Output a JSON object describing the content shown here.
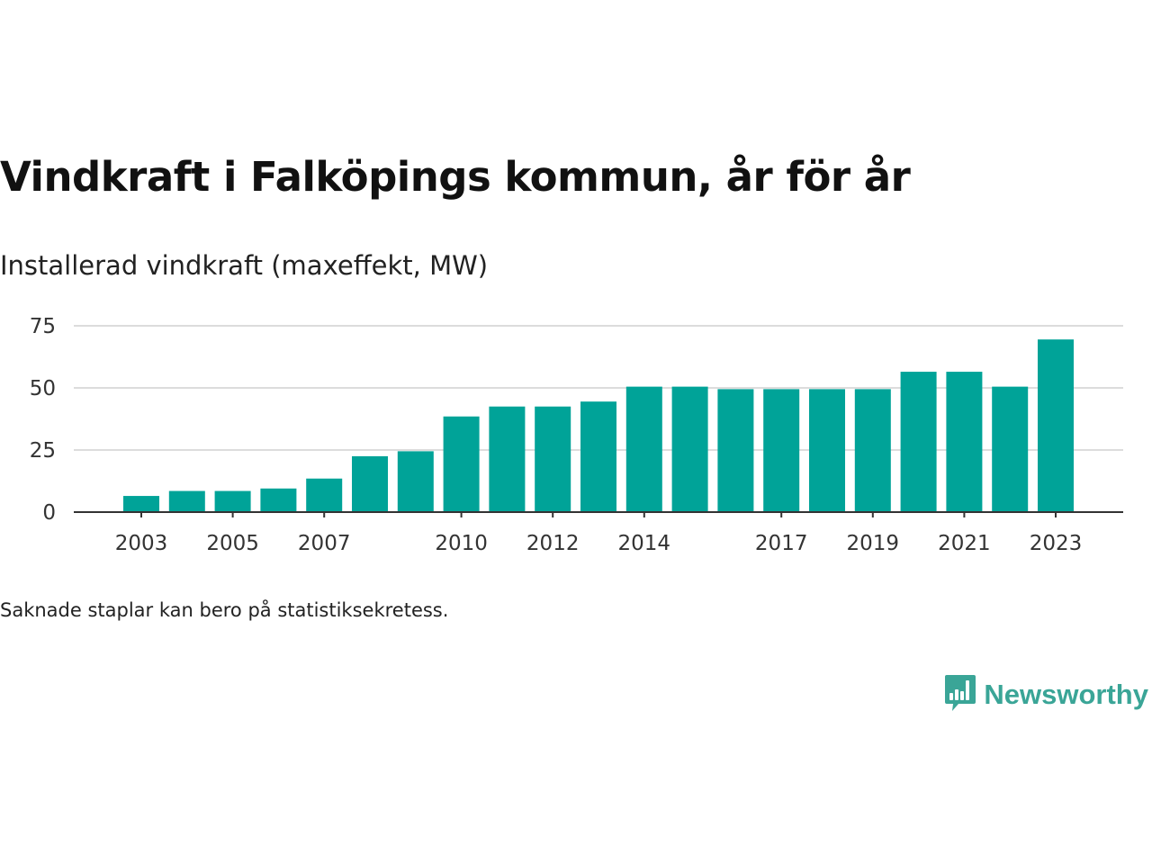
{
  "header": {
    "title": "Vindkraft i Falköpings kommun, år för år",
    "subtitle": "Installerad vindkraft (maxeffekt, MW)"
  },
  "footer": {
    "note": "Saknade staplar kan bero på statistiksekretess."
  },
  "brand": {
    "name": "Newsworthy",
    "icon": "bar-chart-speech-bubble-icon",
    "color": "#3aa597"
  },
  "chart_data": {
    "type": "bar",
    "categories": [
      "2003",
      "2004",
      "2005",
      "2006",
      "2007",
      "2008",
      "2009",
      "2010",
      "2011",
      "2012",
      "2013",
      "2014",
      "2015",
      "2016",
      "2017",
      "2018",
      "2019",
      "2020",
      "2021",
      "2022",
      "2023"
    ],
    "values": [
      6.5,
      8.5,
      8.5,
      9.5,
      13.5,
      22.5,
      24.5,
      38.5,
      42.5,
      42.5,
      44.5,
      50.5,
      50.5,
      49.5,
      49.5,
      49.5,
      49.5,
      56.5,
      56.5,
      50.5,
      69.5
    ],
    "x_tick_labels": [
      "2003",
      "2005",
      "2007",
      "2010",
      "2012",
      "2014",
      "2017",
      "2019",
      "2021",
      "2023"
    ],
    "y_ticks": [
      0,
      25,
      50,
      75
    ],
    "ylim": [
      0,
      75
    ],
    "grid": true,
    "bar_color": "#00a398",
    "title": "Vindkraft i Falköpings kommun, år för år",
    "ylabel": "Installerad vindkraft (maxeffekt, MW)",
    "xlabel": ""
  }
}
